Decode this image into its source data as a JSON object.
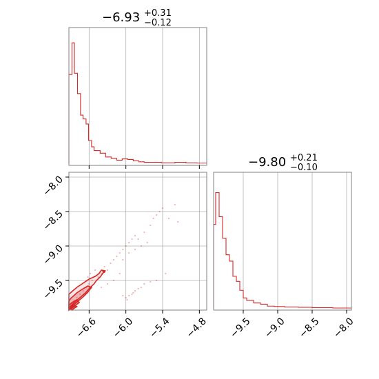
{
  "colors": {
    "accent": "#d62728",
    "grid": "#b0b0b0",
    "frame": "#808080"
  },
  "chart_data": [
    {
      "type": "histogram",
      "panel": "top-left",
      "title": {
        "median": "−6.93",
        "upper": "+0.31",
        "lower": "−0.12"
      },
      "xlim": [
        -6.93,
        -4.68
      ],
      "xticks": [
        -6.6,
        -6.0,
        -5.4,
        -4.8
      ],
      "bins": [
        {
          "x0": -6.93,
          "x1": -6.88,
          "h": 0.7
        },
        {
          "x0": -6.88,
          "x1": -6.84,
          "h": 0.95
        },
        {
          "x0": -6.84,
          "x1": -6.79,
          "h": 0.71
        },
        {
          "x0": -6.79,
          "x1": -6.74,
          "h": 0.55
        },
        {
          "x0": -6.74,
          "x1": -6.7,
          "h": 0.38
        },
        {
          "x0": -6.7,
          "x1": -6.65,
          "h": 0.35
        },
        {
          "x0": -6.65,
          "x1": -6.61,
          "h": 0.31
        },
        {
          "x0": -6.61,
          "x1": -6.56,
          "h": 0.18
        },
        {
          "x0": -6.56,
          "x1": -6.52,
          "h": 0.13
        },
        {
          "x0": -6.52,
          "x1": -6.42,
          "h": 0.1
        },
        {
          "x0": -6.42,
          "x1": -6.33,
          "h": 0.08
        },
        {
          "x0": -6.33,
          "x1": -6.24,
          "h": 0.05
        },
        {
          "x0": -6.24,
          "x1": -6.15,
          "h": 0.04
        },
        {
          "x0": -6.15,
          "x1": -6.06,
          "h": 0.025
        },
        {
          "x0": -6.06,
          "x1": -5.97,
          "h": 0.035
        },
        {
          "x0": -5.97,
          "x1": -5.88,
          "h": 0.03
        },
        {
          "x0": -5.88,
          "x1": -5.79,
          "h": 0.02
        },
        {
          "x0": -5.79,
          "x1": -5.7,
          "h": 0.012
        },
        {
          "x0": -5.7,
          "x1": -5.61,
          "h": 0.008
        },
        {
          "x0": -5.61,
          "x1": -5.42,
          "h": 0.008
        },
        {
          "x0": -5.42,
          "x1": -5.2,
          "h": 0.004
        },
        {
          "x0": -5.2,
          "x1": -5.02,
          "h": 0.008
        },
        {
          "x0": -5.02,
          "x1": -4.84,
          "h": 0.004
        },
        {
          "x0": -4.84,
          "x1": -4.68,
          "h": 0.002
        }
      ]
    },
    {
      "type": "histogram",
      "panel": "bottom-right",
      "title": {
        "median": "−9.80",
        "upper": "+0.21",
        "lower": "−0.10"
      },
      "xlim": [
        -9.93,
        -7.93
      ],
      "xticks": [
        -9.5,
        -9.0,
        -8.5,
        -8.0
      ],
      "bins": [
        {
          "x0": -9.93,
          "x1": -9.9,
          "h": 0.66
        },
        {
          "x0": -9.9,
          "x1": -9.85,
          "h": 0.91
        },
        {
          "x0": -9.85,
          "x1": -9.8,
          "h": 0.72
        },
        {
          "x0": -9.8,
          "x1": -9.75,
          "h": 0.55
        },
        {
          "x0": -9.75,
          "x1": -9.7,
          "h": 0.42
        },
        {
          "x0": -9.7,
          "x1": -9.65,
          "h": 0.37
        },
        {
          "x0": -9.65,
          "x1": -9.6,
          "h": 0.25
        },
        {
          "x0": -9.6,
          "x1": -9.55,
          "h": 0.21
        },
        {
          "x0": -9.55,
          "x1": -9.5,
          "h": 0.14
        },
        {
          "x0": -9.5,
          "x1": -9.45,
          "h": 0.08
        },
        {
          "x0": -9.45,
          "x1": -9.35,
          "h": 0.06
        },
        {
          "x0": -9.35,
          "x1": -9.25,
          "h": 0.04
        },
        {
          "x0": -9.25,
          "x1": -9.15,
          "h": 0.03
        },
        {
          "x0": -9.15,
          "x1": -9.05,
          "h": 0.015
        },
        {
          "x0": -9.05,
          "x1": -8.9,
          "h": 0.012
        },
        {
          "x0": -8.9,
          "x1": -8.7,
          "h": 0.008
        },
        {
          "x0": -8.7,
          "x1": -8.5,
          "h": 0.006
        },
        {
          "x0": -8.5,
          "x1": -8.2,
          "h": 0.003
        }
      ]
    },
    {
      "type": "scatter",
      "panel": "bottom-left",
      "xlim": [
        -6.93,
        -4.68
      ],
      "ylim": [
        -9.93,
        -7.93
      ],
      "xticks": [
        -6.6,
        -6.0,
        -5.4,
        -4.8
      ],
      "yticks": [
        -8.0,
        -8.5,
        -9.0,
        -9.5
      ],
      "points": [
        [
          -6.4,
          -9.4
        ],
        [
          -6.3,
          -9.35
        ],
        [
          -6.2,
          -9.2
        ],
        [
          -6.15,
          -9.15
        ],
        [
          -6.1,
          -9.1
        ],
        [
          -6.05,
          -9.05
        ],
        [
          -6.0,
          -9.0
        ],
        [
          -5.95,
          -8.95
        ],
        [
          -5.9,
          -8.9
        ],
        [
          -5.85,
          -8.85
        ],
        [
          -5.8,
          -8.9
        ],
        [
          -5.7,
          -8.8
        ],
        [
          -5.6,
          -8.7
        ],
        [
          -5.55,
          -8.6
        ],
        [
          -5.5,
          -8.55
        ],
        [
          -5.45,
          -8.5
        ],
        [
          -5.4,
          -8.45
        ],
        [
          -5.3,
          -8.6
        ],
        [
          -5.2,
          -8.4
        ],
        [
          -5.15,
          -8.65
        ],
        [
          -6.25,
          -9.25
        ],
        [
          -6.35,
          -9.3
        ],
        [
          -6.45,
          -9.45
        ],
        [
          -6.55,
          -9.5
        ],
        [
          -6.5,
          -9.35
        ],
        [
          -6.6,
          -9.55
        ],
        [
          -6.65,
          -9.6
        ],
        [
          -6.3,
          -9.55
        ],
        [
          -6.2,
          -9.5
        ],
        [
          -6.1,
          -9.4
        ],
        [
          -5.75,
          -9.0
        ],
        [
          -5.65,
          -8.95
        ],
        [
          -5.85,
          -9.05
        ],
        [
          -5.95,
          -9.1
        ],
        [
          -6.05,
          -9.2
        ],
        [
          -6.0,
          -9.75
        ],
        [
          -5.95,
          -9.72
        ],
        [
          -5.9,
          -9.7
        ],
        [
          -5.85,
          -9.65
        ],
        [
          -5.8,
          -9.62
        ],
        [
          -5.75,
          -9.6
        ],
        [
          -5.7,
          -9.55
        ],
        [
          -5.6,
          -9.52
        ],
        [
          -5.5,
          -9.5
        ],
        [
          -5.35,
          -9.4
        ],
        [
          -6.05,
          -9.72
        ],
        [
          -5.98,
          -9.78
        ],
        [
          -5.88,
          -9.68
        ],
        [
          -6.4,
          -9.6
        ],
        [
          -6.7,
          -9.65
        ],
        [
          -6.75,
          -9.7
        ],
        [
          -6.8,
          -9.75
        ],
        [
          -6.85,
          -9.8
        ],
        [
          -6.62,
          -9.45
        ],
        [
          -6.58,
          -9.4
        ]
      ],
      "contours": [
        [
          [
            -6.93,
            -9.9
          ],
          [
            -6.84,
            -9.82
          ],
          [
            -6.75,
            -9.75
          ],
          [
            -6.66,
            -9.68
          ],
          [
            -6.58,
            -9.6
          ],
          [
            -6.52,
            -9.55
          ],
          [
            -6.48,
            -9.5
          ],
          [
            -6.42,
            -9.45
          ],
          [
            -6.38,
            -9.4
          ],
          [
            -6.34,
            -9.36
          ],
          [
            -6.4,
            -9.35
          ],
          [
            -6.44,
            -9.4
          ],
          [
            -6.5,
            -9.44
          ],
          [
            -6.6,
            -9.48
          ],
          [
            -6.7,
            -9.54
          ],
          [
            -6.8,
            -9.6
          ],
          [
            -6.88,
            -9.66
          ],
          [
            -6.93,
            -9.7
          ]
        ],
        [
          [
            -6.93,
            -9.92
          ],
          [
            -6.86,
            -9.86
          ],
          [
            -6.78,
            -9.8
          ],
          [
            -6.7,
            -9.74
          ],
          [
            -6.62,
            -9.67
          ],
          [
            -6.56,
            -9.6
          ],
          [
            -6.62,
            -9.58
          ],
          [
            -6.7,
            -9.62
          ],
          [
            -6.8,
            -9.68
          ],
          [
            -6.9,
            -9.76
          ],
          [
            -6.93,
            -9.8
          ]
        ],
        [
          [
            -6.93,
            -9.93
          ],
          [
            -6.88,
            -9.9
          ],
          [
            -6.82,
            -9.86
          ],
          [
            -6.76,
            -9.82
          ],
          [
            -6.8,
            -9.78
          ],
          [
            -6.88,
            -9.82
          ],
          [
            -6.93,
            -9.86
          ]
        ],
        [
          [
            -6.88,
            -9.93
          ],
          [
            -6.84,
            -9.9
          ],
          [
            -6.8,
            -9.88
          ],
          [
            -6.84,
            -9.86
          ],
          [
            -6.9,
            -9.89
          ]
        ]
      ],
      "peak": [
        -6.36,
        -9.37
      ]
    }
  ]
}
